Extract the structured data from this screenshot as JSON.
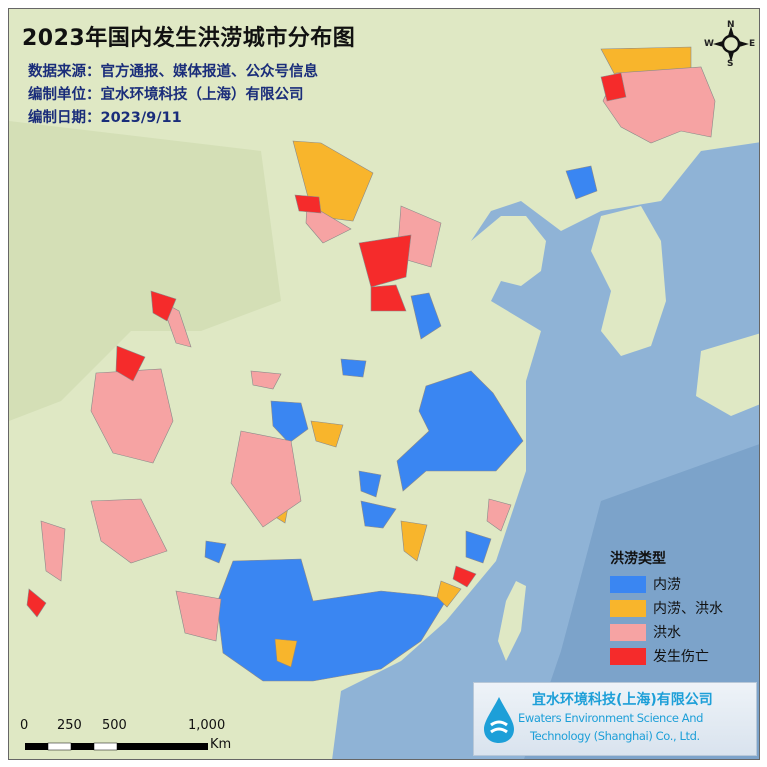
{
  "header": {
    "title": "2023年国内发生洪涝城市分布图",
    "source": "数据来源：官方通报、媒体报道、公众号信息",
    "producer": "编制单位：宜水环境科技（上海）有限公司",
    "date": "编制日期：2023/9/11"
  },
  "legend": {
    "title": "洪涝类型",
    "items": [
      {
        "label": "内涝",
        "color": "#3a86f2"
      },
      {
        "label": "内涝、洪水",
        "color": "#f8b52c"
      },
      {
        "label": "洪水",
        "color": "#f6a3a3"
      },
      {
        "label": "发生伤亡",
        "color": "#f52b2b"
      }
    ]
  },
  "logo": {
    "name_cn": "宜水环境科技(上海)有限公司",
    "name_en_1": "Ewaters Environment Science And",
    "name_en_2": "Technology (Shanghai) Co., Ltd."
  },
  "scale_bar": {
    "labels": [
      "0",
      "250",
      "500",
      "1,000"
    ],
    "unit": "Km"
  },
  "compass": {
    "n": "N",
    "s": "S",
    "e": "E",
    "w": "W"
  },
  "colors": {
    "land": "#dfe8c4",
    "sea": "#8fb3d6"
  }
}
